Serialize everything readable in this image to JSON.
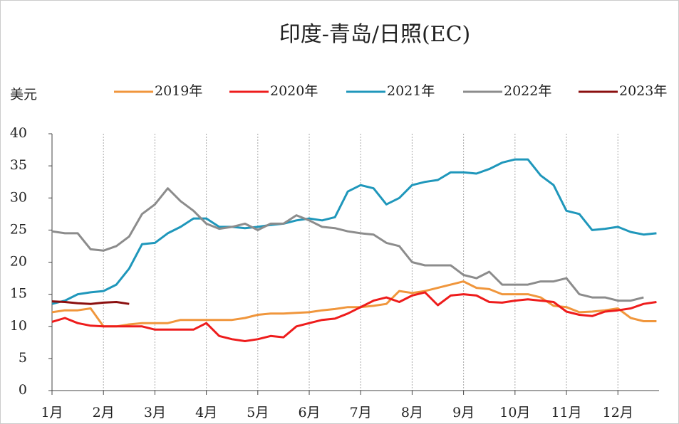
{
  "chart_data": {
    "type": "line",
    "title": "印度-青岛/日照(EC)",
    "y_label": "美元",
    "x": [
      1,
      1.25,
      1.5,
      1.75,
      2,
      2.25,
      2.5,
      2.75,
      3,
      3.25,
      3.5,
      3.75,
      4,
      4.25,
      4.5,
      4.75,
      5,
      5.25,
      5.5,
      5.75,
      6,
      6.25,
      6.5,
      6.75,
      7,
      7.25,
      7.5,
      7.75,
      8,
      8.25,
      8.5,
      8.75,
      9,
      9.25,
      9.5,
      9.75,
      10,
      10.25,
      10.5,
      10.75,
      11,
      11.25,
      11.5,
      11.75,
      12,
      12.25,
      12.5,
      12.75
    ],
    "series": [
      {
        "name": "2019年",
        "color": "#f0963c",
        "values": [
          12.2,
          12.5,
          12.5,
          12.8,
          10,
          10,
          10.3,
          10.5,
          10.5,
          10.5,
          11,
          11,
          11,
          11,
          11,
          11.3,
          11.8,
          12,
          12,
          12.1,
          12.2,
          12.5,
          12.7,
          13,
          13,
          13.2,
          13.5,
          15.5,
          15.2,
          15.5,
          16,
          16.5,
          17,
          16,
          15.8,
          15,
          15,
          15,
          14.5,
          13.2,
          13,
          12.2,
          12.3,
          12.5,
          12.8,
          11.3,
          10.8,
          10.8
        ]
      },
      {
        "name": "2020年",
        "color": "#ee1c1c",
        "values": [
          10.7,
          11.3,
          10.5,
          10.1,
          10,
          10,
          10,
          10,
          9.5,
          9.5,
          9.5,
          9.5,
          10.5,
          8.5,
          8,
          7.7,
          8,
          8.5,
          8.3,
          10,
          10.5,
          11,
          11.2,
          12,
          13,
          14,
          14.5,
          13.8,
          14.8,
          15.3,
          13.3,
          14.8,
          15,
          14.8,
          13.8,
          13.7,
          14,
          14.2,
          14,
          13.8,
          12.3,
          11.8,
          11.6,
          12.3,
          12.5,
          12.8,
          13.5,
          13.8
        ]
      },
      {
        "name": "2021年",
        "color": "#1f97bb",
        "values": [
          13.5,
          14,
          15,
          15.3,
          15.5,
          16.5,
          19,
          22.8,
          23,
          24.5,
          25.5,
          26.8,
          26.8,
          25.5,
          25.5,
          25.3,
          25.5,
          25.8,
          26,
          26.5,
          26.8,
          26.5,
          27,
          31,
          32,
          31.5,
          29,
          30,
          32,
          32.5,
          32.8,
          34,
          34,
          33.8,
          34.5,
          35.5,
          36,
          36,
          33.5,
          32,
          28,
          27.5,
          25,
          25.2,
          25.5,
          24.7,
          24.3,
          24.5
        ]
      },
      {
        "name": "2022年",
        "color": "#8c8c8c",
        "values": [
          24.8,
          24.5,
          24.5,
          22,
          21.8,
          22.5,
          24,
          27.5,
          29,
          31.5,
          29.5,
          28,
          26,
          25.2,
          25.5,
          26,
          25,
          26,
          26,
          27.3,
          26.5,
          25.5,
          25.3,
          24.8,
          24.5,
          24.3,
          23,
          22.5,
          20,
          19.5,
          19.5,
          19.5,
          18,
          17.5,
          18.5,
          16.5,
          16.5,
          16.5,
          17,
          17,
          17.5,
          15,
          14.5,
          14.5,
          14,
          14,
          14.5,
          null
        ]
      },
      {
        "name": "2023年",
        "color": "#8b0f0f",
        "values": [
          13.9,
          13.8,
          13.6,
          13.5,
          13.7,
          13.8,
          13.5,
          null,
          null,
          null,
          null,
          null,
          null,
          null,
          null,
          null,
          null,
          null,
          null,
          null,
          null,
          null,
          null,
          null,
          null,
          null,
          null,
          null,
          null,
          null,
          null,
          null,
          null,
          null,
          null,
          null,
          null,
          null,
          null,
          null,
          null,
          null,
          null,
          null,
          null,
          null,
          null,
          null
        ]
      }
    ],
    "xlim": [
      1,
      12.8
    ],
    "xticks": [
      {
        "value": 1,
        "label": "1月"
      },
      {
        "value": 2,
        "label": "2月"
      },
      {
        "value": 3,
        "label": "3月"
      },
      {
        "value": 4,
        "label": "4月"
      },
      {
        "value": 5,
        "label": "5月"
      },
      {
        "value": 6,
        "label": "6月"
      },
      {
        "value": 7,
        "label": "7月"
      },
      {
        "value": 8,
        "label": "8月"
      },
      {
        "value": 9,
        "label": "9月"
      },
      {
        "value": 10,
        "label": "10月"
      },
      {
        "value": 11,
        "label": "11月"
      },
      {
        "value": 12,
        "label": "12月"
      }
    ],
    "ylim": [
      0,
      40
    ],
    "yticks": [
      0,
      5,
      10,
      15,
      20,
      25,
      30,
      35,
      40
    ],
    "grid": true
  }
}
